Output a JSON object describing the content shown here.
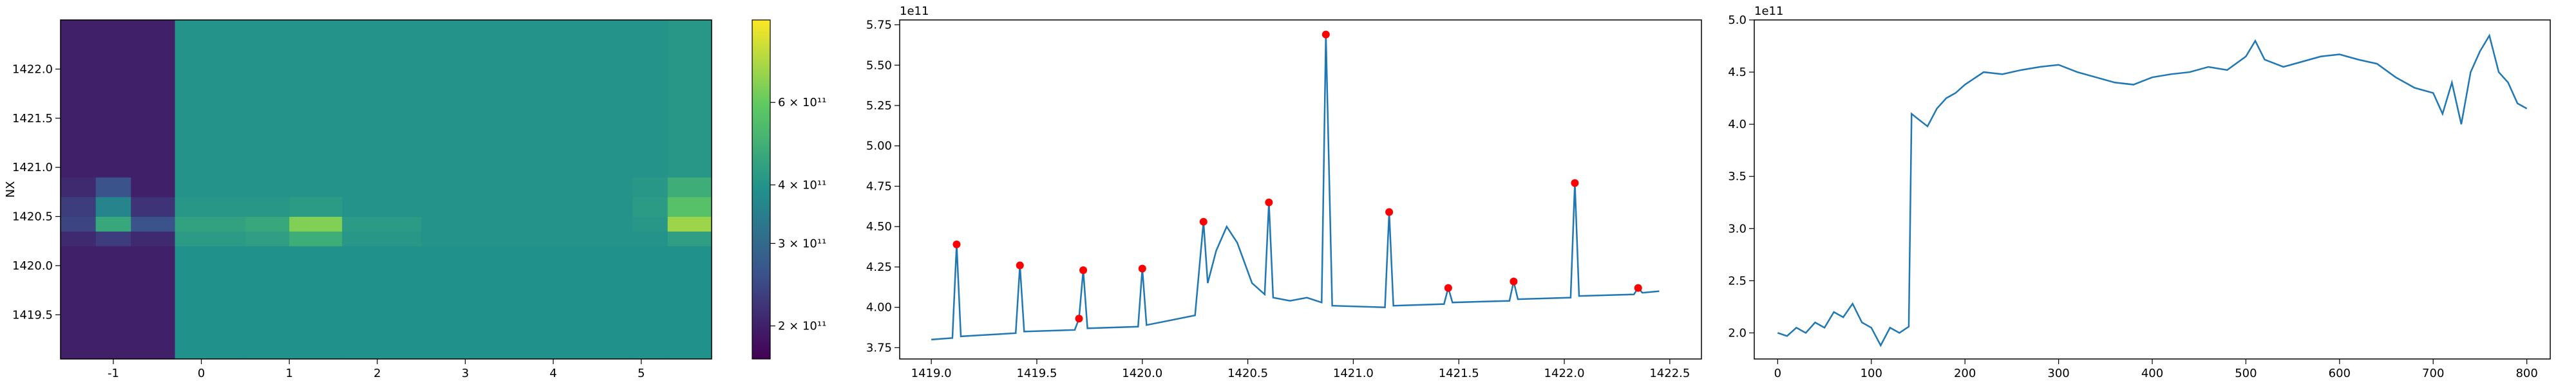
{
  "chart_data": [
    {
      "type": "heatmap",
      "y_label": "NX",
      "colormap": "viridis",
      "log_color": true,
      "x_edges": [
        -1.6,
        -1.2,
        -0.8,
        -0.3,
        0.5,
        1.0,
        1.6,
        2.5,
        3.5,
        4.9,
        5.3,
        5.8
      ],
      "y_edges": [
        1419.05,
        1420.2,
        1420.35,
        1420.5,
        1420.7,
        1420.9,
        1422.5
      ],
      "z": [
        [
          200000000000.0,
          200000000000.0,
          200000000000.0,
          390000000000.0,
          390000000000.0,
          390000000000.0,
          390000000000.0,
          390000000000.0,
          390000000000.0,
          390000000000.0,
          390000000000.0
        ],
        [
          210000000000.0,
          230000000000.0,
          210000000000.0,
          420000000000.0,
          430000000000.0,
          480000000000.0,
          410000000000.0,
          400000000000.0,
          400000000000.0,
          400000000000.0,
          430000000000.0
        ],
        [
          240000000000.0,
          460000000000.0,
          260000000000.0,
          440000000000.0,
          460000000000.0,
          650000000000.0,
          420000000000.0,
          400000000000.0,
          400000000000.0,
          410000000000.0,
          700000000000.0
        ],
        [
          230000000000.0,
          360000000000.0,
          220000000000.0,
          410000000000.0,
          410000000000.0,
          420000000000.0,
          400000000000.0,
          400000000000.0,
          400000000000.0,
          420000000000.0,
          560000000000.0
        ],
        [
          210000000000.0,
          260000000000.0,
          200000000000.0,
          400000000000.0,
          400000000000.0,
          400000000000.0,
          400000000000.0,
          400000000000.0,
          400000000000.0,
          410000000000.0,
          480000000000.0
        ],
        [
          200000000000.0,
          200000000000.0,
          200000000000.0,
          400000000000.0,
          400000000000.0,
          400000000000.0,
          400000000000.0,
          400000000000.0,
          400000000000.0,
          400000000000.0,
          410000000000.0
        ]
      ],
      "xlim": [
        -1.6,
        5.8
      ],
      "xticks": [
        -1,
        0,
        1,
        2,
        3,
        4,
        5
      ],
      "ylim": [
        1419.05,
        1422.5
      ],
      "yticks": [
        {
          "value": 1419.5,
          "label": "1419.5"
        },
        {
          "value": 1420,
          "label": "1420.0"
        },
        {
          "value": 1420.5,
          "label": "1420.5"
        },
        {
          "value": 1421,
          "label": "1421.0"
        },
        {
          "value": 1421.5,
          "label": "1421.5"
        },
        {
          "value": 1422,
          "label": "1422.0"
        }
      ],
      "clim": [
        170000000000.0,
        900000000000.0
      ],
      "cticks": [
        {
          "value": 200000000000.0,
          "label": "2 × 10¹¹"
        },
        {
          "value": 300000000000.0,
          "label": "3 × 10¹¹"
        },
        {
          "value": 400000000000.0,
          "label": "4 × 10¹¹"
        },
        {
          "value": 600000000000.0,
          "label": "6 × 10¹¹"
        }
      ]
    },
    {
      "type": "line",
      "color": "#1f77b4",
      "y_offset_label": "1e11",
      "x": [
        1419.0,
        1419.1,
        1419.12,
        1419.14,
        1419.4,
        1419.42,
        1419.44,
        1419.68,
        1419.7,
        1419.72,
        1419.74,
        1419.98,
        1420.0,
        1420.02,
        1420.25,
        1420.29,
        1420.31,
        1420.35,
        1420.4,
        1420.45,
        1420.52,
        1420.58,
        1420.6,
        1420.62,
        1420.7,
        1420.78,
        1420.85,
        1420.87,
        1420.9,
        1421.15,
        1421.17,
        1421.19,
        1421.43,
        1421.45,
        1421.47,
        1421.74,
        1421.76,
        1421.78,
        1422.03,
        1422.05,
        1422.07,
        1422.33,
        1422.35,
        1422.37,
        1422.45
      ],
      "values": [
        3.8,
        3.81,
        4.39,
        3.82,
        3.84,
        4.26,
        3.85,
        3.86,
        3.93,
        4.23,
        3.87,
        3.88,
        4.24,
        3.89,
        3.95,
        4.53,
        4.15,
        4.35,
        4.5,
        4.4,
        4.15,
        4.08,
        4.65,
        4.06,
        4.04,
        4.06,
        4.03,
        5.69,
        4.01,
        4.0,
        4.59,
        4.01,
        4.02,
        4.12,
        4.03,
        4.04,
        4.16,
        4.05,
        4.06,
        4.77,
        4.07,
        4.08,
        4.12,
        4.09,
        4.1
      ],
      "peaks": {
        "color": "#ff0000",
        "x": [
          1419.12,
          1419.42,
          1419.7,
          1419.72,
          1420.0,
          1420.29,
          1420.6,
          1420.87,
          1421.17,
          1421.45,
          1421.76,
          1422.05,
          1422.35
        ],
        "y": [
          4.39,
          4.26,
          3.93,
          4.23,
          4.24,
          4.53,
          4.65,
          5.69,
          4.59,
          4.12,
          4.16,
          4.77,
          4.12
        ]
      },
      "xlim": [
        1418.85,
        1422.65
      ],
      "xticks": [
        {
          "value": 1419,
          "label": "1419.0"
        },
        1419.5,
        {
          "value": 1420,
          "label": "1420.0"
        },
        1420.5,
        {
          "value": 1421,
          "label": "1421.0"
        },
        1421.5,
        {
          "value": 1422,
          "label": "1422.0"
        },
        1422.5
      ],
      "ylim": [
        3.68,
        5.78
      ],
      "yticks": [
        3.75,
        {
          "value": 4,
          "label": "4.00"
        },
        4.25,
        {
          "value": 4.5,
          "label": "4.50"
        },
        4.75,
        {
          "value": 5,
          "label": "5.00"
        },
        5.25,
        {
          "value": 5.5,
          "label": "5.50"
        },
        5.75
      ]
    },
    {
      "type": "line",
      "color": "#1f77b4",
      "y_offset_label": "1e11",
      "x": [
        0,
        10,
        20,
        30,
        40,
        50,
        60,
        70,
        80,
        90,
        100,
        110,
        120,
        130,
        140,
        143,
        150,
        160,
        170,
        180,
        190,
        200,
        220,
        240,
        260,
        280,
        300,
        320,
        340,
        360,
        380,
        400,
        420,
        440,
        460,
        480,
        500,
        510,
        520,
        540,
        560,
        580,
        600,
        620,
        640,
        660,
        680,
        700,
        710,
        720,
        730,
        740,
        750,
        760,
        770,
        780,
        790,
        800
      ],
      "values": [
        2.0,
        1.97,
        2.05,
        2.0,
        2.1,
        2.05,
        2.2,
        2.15,
        2.28,
        2.1,
        2.05,
        1.88,
        2.05,
        2.0,
        2.06,
        4.1,
        4.05,
        3.98,
        4.15,
        4.25,
        4.3,
        4.38,
        4.5,
        4.48,
        4.52,
        4.55,
        4.57,
        4.5,
        4.45,
        4.4,
        4.38,
        4.45,
        4.48,
        4.5,
        4.55,
        4.52,
        4.65,
        4.8,
        4.62,
        4.55,
        4.6,
        4.65,
        4.67,
        4.62,
        4.58,
        4.45,
        4.35,
        4.3,
        4.1,
        4.4,
        4.0,
        4.5,
        4.7,
        4.85,
        4.5,
        4.4,
        4.2,
        4.15
      ],
      "xlim": [
        -25,
        825
      ],
      "xticks": [
        0,
        100,
        200,
        300,
        400,
        500,
        600,
        700,
        800
      ],
      "ylim": [
        1.75,
        5.0
      ],
      "yticks": [
        {
          "value": 2,
          "label": "2.0"
        },
        2.5,
        {
          "value": 3,
          "label": "3.0"
        },
        3.5,
        {
          "value": 4,
          "label": "4.0"
        },
        4.5,
        {
          "value": 5,
          "label": "5.0"
        }
      ]
    }
  ]
}
